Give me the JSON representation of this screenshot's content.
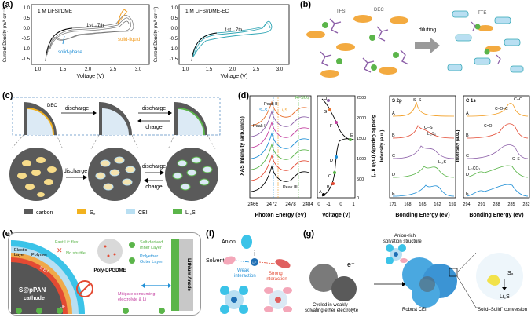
{
  "colors": {
    "orange": "#f29c1f",
    "blue": "#1f8fd6",
    "teal": "#31a6b5",
    "purple": "#8c5fa8",
    "gray": "#8c8c8c",
    "green": "#5bb54a",
    "lightblue": "#b9dff2"
  },
  "panel_labels": {
    "a": "(a)",
    "b": "(b)",
    "c": "(c)",
    "d": "(d)",
    "e": "(e)",
    "f": "(f)",
    "g": "(g)"
  },
  "a": {
    "left": {
      "legend": "1 M LiFSI/DME",
      "ylabel": "Current Density (mA cm⁻²)",
      "xlabel": "Voltage (V)",
      "cycles": "1st→7th",
      "ann_solid_phase": "solid-phase",
      "ann_solid_liquid": "solid-liquid",
      "yticks": [
        "1.0",
        "0.5",
        "0.0",
        "-0.5",
        "-1.0",
        "-1.5"
      ],
      "xticks": [
        "1.0",
        "1.5",
        "2.0",
        "2.5",
        "3.0"
      ]
    },
    "right": {
      "legend": "1 M LiFSI/DME-EC",
      "ylabel": "Current Density (mA cm⁻²)",
      "xlabel": "Voltage (V)",
      "cycles": "1st→7th",
      "yticks": [
        "1.0",
        "0.5",
        "0.0",
        "-0.5",
        "-1.0",
        "-1.5"
      ],
      "xticks": [
        "1.0",
        "1.5",
        "2.0",
        "2.5",
        "3.0"
      ]
    }
  },
  "b": {
    "tfsi": "TFSI",
    "dec": "DEC",
    "tte": "TTE",
    "arrow": "diluting"
  },
  "c": {
    "dec": "DEC",
    "discharge1": "discharge",
    "discharge2": "discharge",
    "charge2": "charge",
    "discharge3": "discharge",
    "discharge4": "discharge",
    "charge4": "charge",
    "legend": [
      {
        "label": "carbon",
        "color": "#5a5a5a"
      },
      {
        "label": "S₈",
        "color": "#f2b21f"
      },
      {
        "label": "CEI",
        "color": "#b9dff2"
      },
      {
        "label": "Li₂S",
        "color": "#5bb54a"
      }
    ]
  },
  "d": {
    "xas": {
      "ylabel": "XAS Intensity (arb.units)",
      "xlabel": "Photon Energy (eV)",
      "xticks": [
        "2466",
        "2472",
        "2478",
        "2484"
      ],
      "peak1": "Peak I",
      "peak2": "Peak II",
      "peak3": "Peak III",
      "ss": "S–S",
      "li2s": "Li₂S",
      "rso": "R–SO₄"
    },
    "volt": {
      "ylabel": "Specific Capacity (mAh g⁻¹)",
      "xlabel": "Voltage (V)",
      "xticks": [
        "0",
        "-1",
        "0",
        "1"
      ],
      "yticks": [
        "2500",
        "2000",
        "1500",
        "1000",
        "500",
        "0"
      ],
      "points": [
        "H",
        "G",
        "F",
        "E",
        "D",
        "C",
        "B",
        "A"
      ]
    },
    "s2p": {
      "title": "S 2p",
      "ylabel": "Intensity (a.u.)",
      "xlabel": "Bonding Energy (eV)",
      "xticks": [
        "171",
        "168",
        "165",
        "162",
        "159"
      ],
      "rows": [
        "A",
        "B",
        "C",
        "D",
        "E"
      ],
      "ss": "S–S",
      "cs": "C–S",
      "li2sx": "Li₂Sₓ",
      "li2s": "Li₂S"
    },
    "c1s": {
      "title": "C 1s",
      "ylabel": "Intensity (a.u.)",
      "xlabel": "Bonding Energy (eV)",
      "xticks": [
        "294",
        "291",
        "288",
        "285",
        "282"
      ],
      "rows": [
        "A",
        "B",
        "C",
        "D",
        "E"
      ],
      "coo": "C–O–C",
      "cc": "C–C",
      "co": "C=O",
      "li2co3": "Li₂CO₃",
      "cs": "C–S"
    }
  },
  "e": {
    "elastic": "Elastic",
    "elastic2": "Layer",
    "polymer": "Polymer",
    "sei": "S E I",
    "cathode1": "S@pPAN",
    "cathode2": "cathode",
    "fast_li": "Fast Li⁺ flux",
    "no_shuttle": "No shuttle",
    "poly": "Poly-DPGDME",
    "salt": "Salt-derived",
    "inner": "Inner Layer",
    "polyether": "Polyether",
    "outer": "Outer Layer",
    "anode": "Lithium Anode",
    "mitigate": "Mitigate consuming",
    "mitigate2": "electrolyte & Li",
    "lif": "LiF"
  },
  "f": {
    "anion": "Anion",
    "solvent": "Solvent",
    "li": "Li⁺",
    "weak": "Weak",
    "weak2": "interaction",
    "strong": "Strong",
    "strong2": "interaction"
  },
  "g": {
    "anion_rich": "Anion-rich",
    "anion_rich2": "solvation structure",
    "cycled": "Cycled in weakly",
    "cycled2": "solvating ether electrolyte",
    "robust": "Robust CEI",
    "s8": "S₈",
    "li2s": "Li₂S",
    "conv": "\"Solid–Solid\" conversion"
  }
}
